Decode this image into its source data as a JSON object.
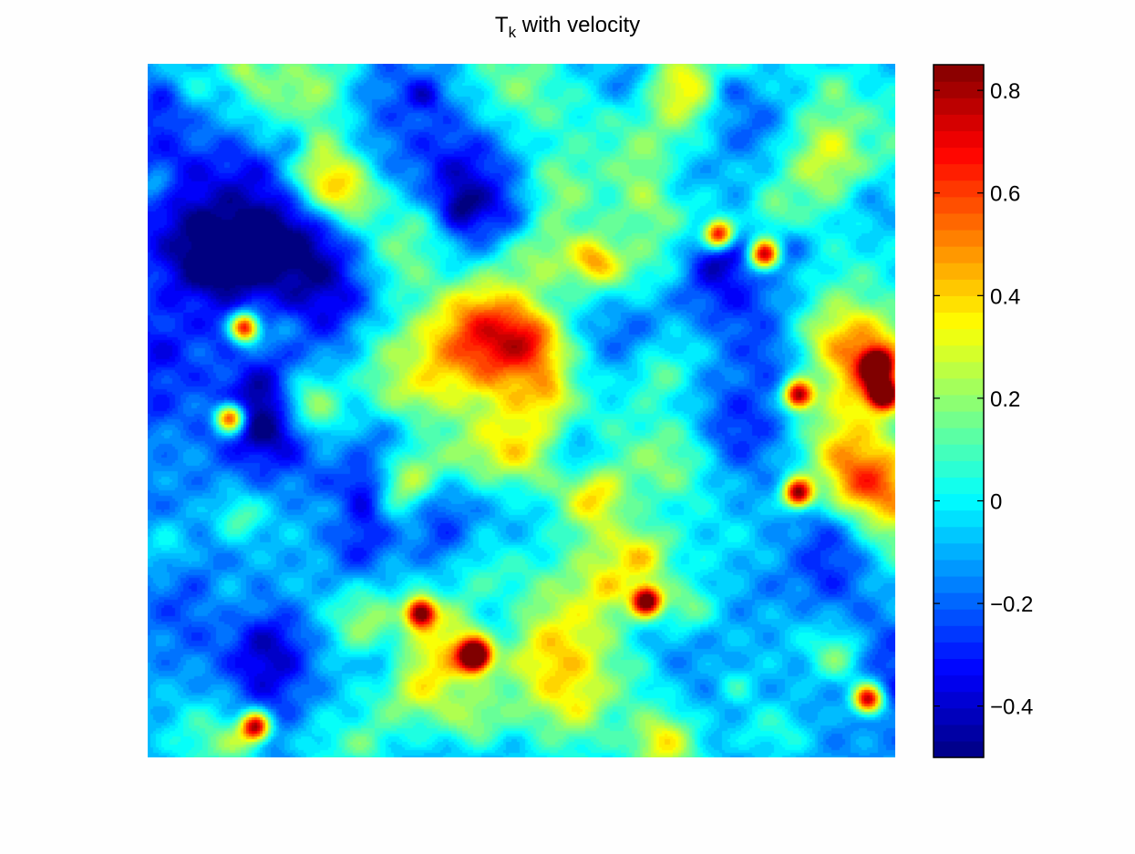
{
  "chart_data": {
    "type": "heatmap",
    "title_main": "T",
    "title_sub": "k",
    "title_rest": " with velocity",
    "colorbar": {
      "range": [
        -0.5,
        0.85
      ],
      "ticks": [
        0.8,
        0.6,
        0.4,
        0.2,
        0,
        -0.2,
        -0.4
      ],
      "tick_labels": [
        "0.8",
        "0.6",
        "0.4",
        "0.2",
        "0",
        "−0.2",
        "−0.4"
      ],
      "colormap": "jet"
    },
    "field": {
      "description_values": "random contour field, mostly between -0.5 and 0.3 with sparse peaks near 0.8",
      "grid": [
        80,
        74
      ]
    },
    "axes_visible": false,
    "grid": false
  }
}
